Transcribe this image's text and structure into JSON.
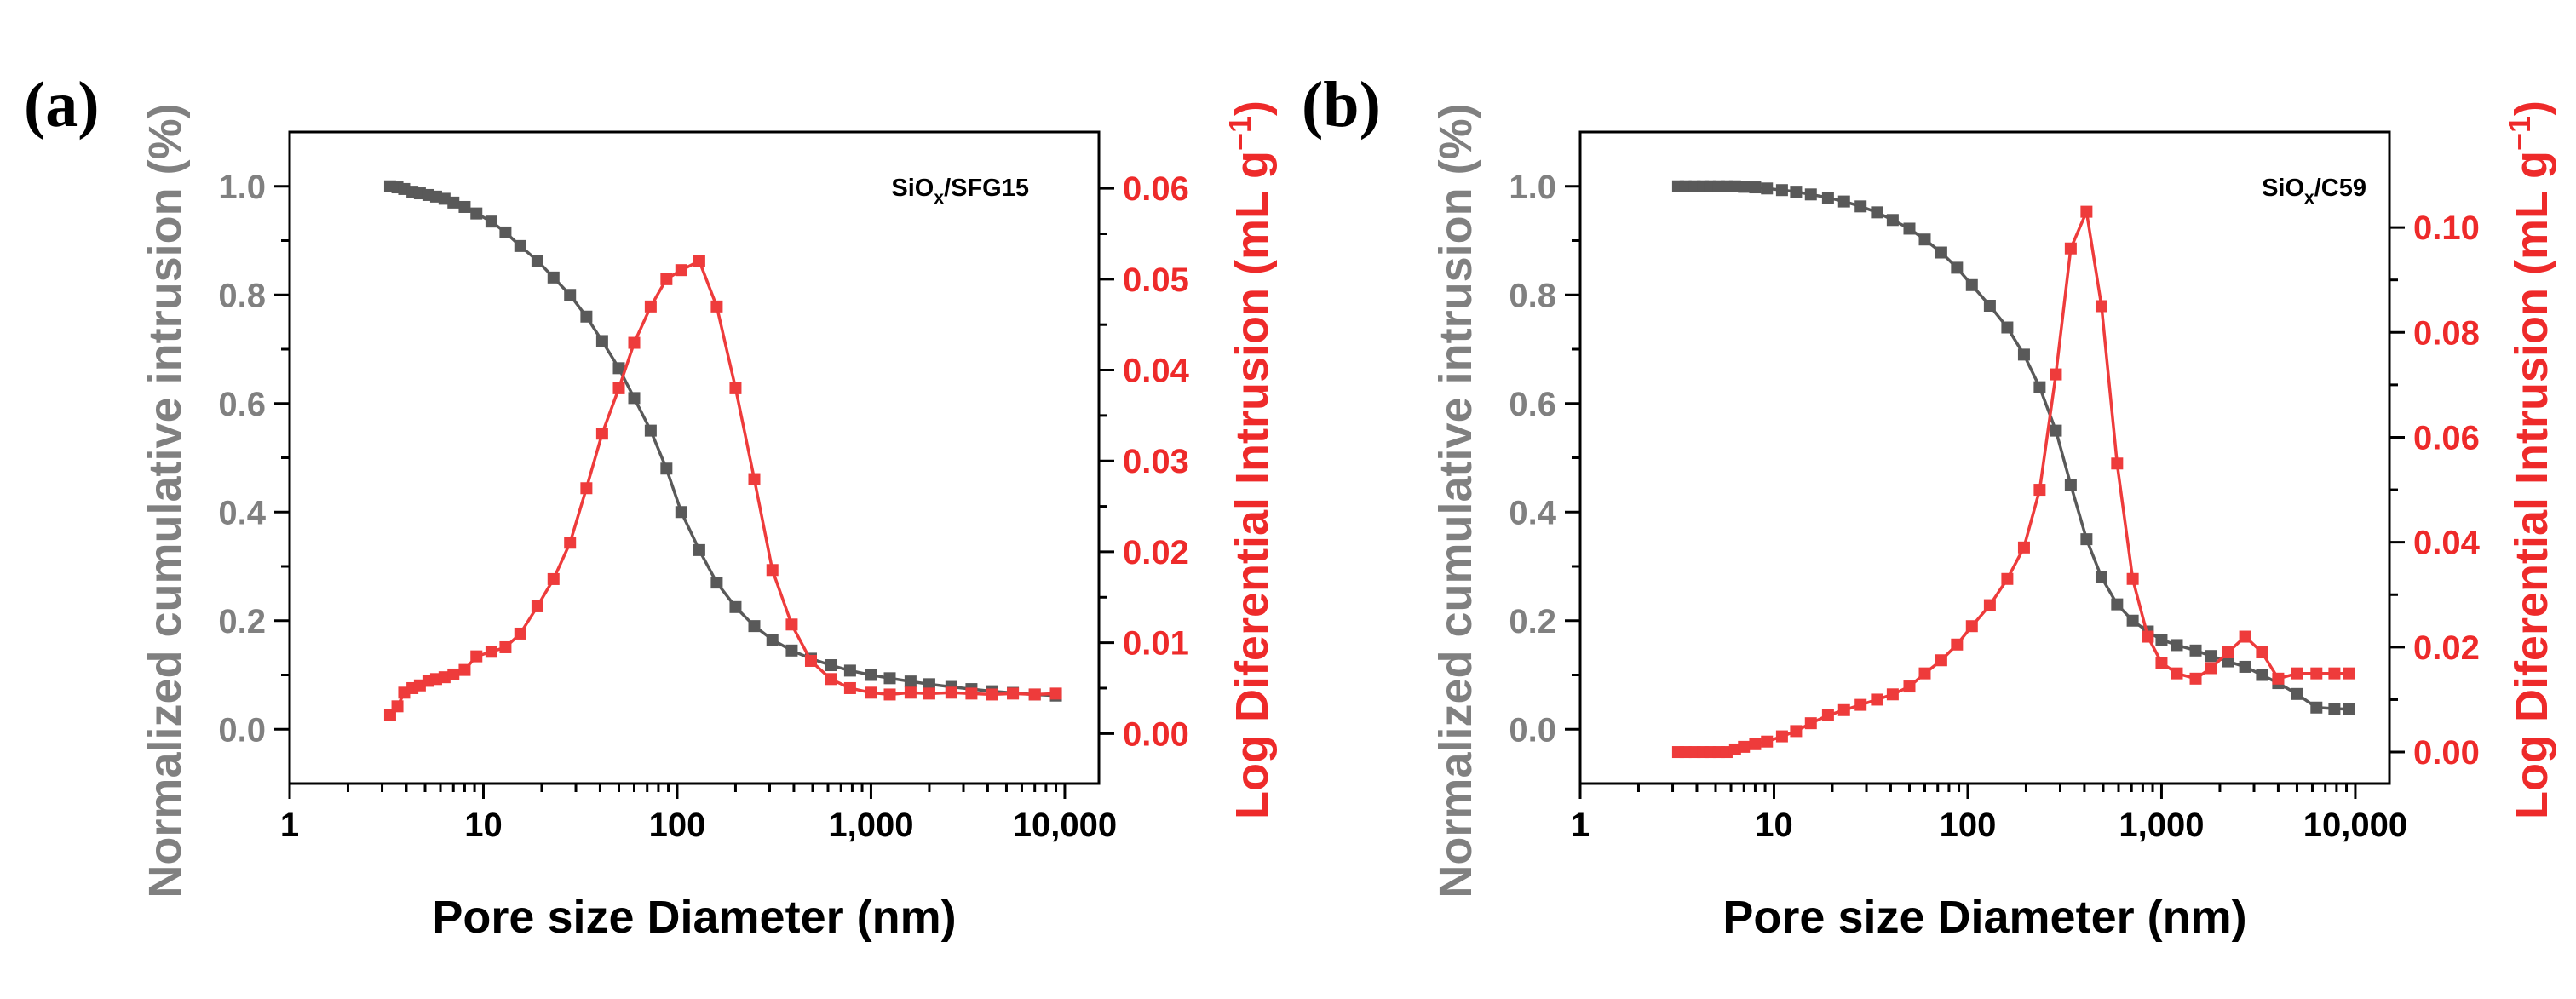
{
  "chart_data": [
    {
      "panel_label": "(a)",
      "type": "scatter",
      "annotation_base": "SiO",
      "annotation_sub": "x",
      "annotation_rest": "/SFG15",
      "xlabel": "Pore size Diameter (nm)",
      "ylabel_left": "Normalized cumulative intrusion (%)",
      "ylabel_right_main": "Log Diferential Intrusion (mL g",
      "ylabel_right_sup": "−1",
      "ylabel_right_close": ")",
      "xscale": "log",
      "xlim": [
        1,
        15000
      ],
      "ylim_left": [
        -0.1,
        1.1
      ],
      "ylim_right": [
        -0.0055,
        0.0662
      ],
      "x_ticks": [
        {
          "value": 1,
          "label": "1"
        },
        {
          "value": 10,
          "label": "10"
        },
        {
          "value": 100,
          "label": "100"
        },
        {
          "value": 1000,
          "label": "1,000"
        },
        {
          "value": 10000,
          "label": "10,000"
        }
      ],
      "y_left_ticks": [
        {
          "value": 0.0,
          "label": "0.0"
        },
        {
          "value": 0.2,
          "label": "0.2"
        },
        {
          "value": 0.4,
          "label": "0.4"
        },
        {
          "value": 0.6,
          "label": "0.6"
        },
        {
          "value": 0.8,
          "label": "0.8"
        },
        {
          "value": 1.0,
          "label": "1.0"
        }
      ],
      "y_right_ticks": [
        {
          "value": 0.0,
          "label": "0.00"
        },
        {
          "value": 0.01,
          "label": "0.01"
        },
        {
          "value": 0.02,
          "label": "0.02"
        },
        {
          "value": 0.03,
          "label": "0.03"
        },
        {
          "value": 0.04,
          "label": "0.04"
        },
        {
          "value": 0.05,
          "label": "0.05"
        },
        {
          "value": 0.06,
          "label": "0.06"
        }
      ],
      "colors": {
        "left": "#595959",
        "right": "#ee3b3b",
        "left_label": "#808080",
        "right_label": "#ee2a2a"
      },
      "series": [
        {
          "name": "Normalized cumulative intrusion",
          "axis": "left",
          "x": [
            3.3,
            3.6,
            3.9,
            4.3,
            4.7,
            5.2,
            5.7,
            6.3,
            7.0,
            8.0,
            9.2,
            11,
            13,
            15.5,
            19,
            23,
            28,
            34,
            41,
            50,
            60,
            73,
            88,
            105,
            130,
            160,
            200,
            250,
            310,
            390,
            490,
            620,
            780,
            1000,
            1250,
            1600,
            2000,
            2600,
            3300,
            4200,
            5400,
            7000,
            9000
          ],
          "values": [
            1.0,
            0.998,
            0.995,
            0.99,
            0.987,
            0.984,
            0.981,
            0.977,
            0.97,
            0.962,
            0.95,
            0.935,
            0.915,
            0.89,
            0.863,
            0.832,
            0.8,
            0.76,
            0.715,
            0.665,
            0.61,
            0.55,
            0.48,
            0.4,
            0.33,
            0.27,
            0.225,
            0.19,
            0.165,
            0.145,
            0.13,
            0.118,
            0.108,
            0.1,
            0.094,
            0.088,
            0.083,
            0.078,
            0.074,
            0.07,
            0.067,
            0.064,
            0.062
          ]
        },
        {
          "name": "Log Diferential Intrusion",
          "axis": "right",
          "x": [
            3.3,
            3.6,
            3.9,
            4.3,
            4.7,
            5.2,
            5.7,
            6.3,
            7.0,
            8.0,
            9.2,
            11,
            13,
            15.5,
            19,
            23,
            28,
            34,
            41,
            50,
            60,
            73,
            88,
            105,
            130,
            160,
            200,
            250,
            310,
            390,
            490,
            620,
            780,
            1000,
            1250,
            1600,
            2000,
            2600,
            3300,
            4200,
            5400,
            7000,
            9000
          ],
          "values": [
            0.002,
            0.003,
            0.0045,
            0.005,
            0.0053,
            0.0058,
            0.006,
            0.0062,
            0.0065,
            0.007,
            0.0085,
            0.009,
            0.0095,
            0.011,
            0.014,
            0.017,
            0.021,
            0.027,
            0.033,
            0.038,
            0.043,
            0.047,
            0.05,
            0.051,
            0.052,
            0.047,
            0.038,
            0.028,
            0.018,
            0.012,
            0.008,
            0.006,
            0.005,
            0.0045,
            0.0043,
            0.0045,
            0.0044,
            0.0045,
            0.0044,
            0.0043,
            0.0044,
            0.0043,
            0.0044
          ]
        }
      ]
    },
    {
      "panel_label": "(b)",
      "type": "scatter",
      "annotation_base": "SiO",
      "annotation_sub": "x",
      "annotation_rest": "/C59",
      "xlabel": "Pore size Diameter (nm)",
      "ylabel_left": "Normalized cumulative intrusion (%)",
      "ylabel_right_main": "Log Diferential Intrusion (mL g",
      "ylabel_right_sup": "−1",
      "ylabel_right_close": ")",
      "xscale": "log",
      "xlim": [
        1,
        15000
      ],
      "ylim_left": [
        -0.1,
        1.1
      ],
      "ylim_right": [
        -0.006,
        0.1182
      ],
      "x_ticks": [
        {
          "value": 1,
          "label": "1"
        },
        {
          "value": 10,
          "label": "10"
        },
        {
          "value": 100,
          "label": "100"
        },
        {
          "value": 1000,
          "label": "1,000"
        },
        {
          "value": 10000,
          "label": "10,000"
        }
      ],
      "y_left_ticks": [
        {
          "value": 0.0,
          "label": "0.0"
        },
        {
          "value": 0.2,
          "label": "0.2"
        },
        {
          "value": 0.4,
          "label": "0.4"
        },
        {
          "value": 0.6,
          "label": "0.6"
        },
        {
          "value": 0.8,
          "label": "0.8"
        },
        {
          "value": 1.0,
          "label": "1.0"
        }
      ],
      "y_right_ticks": [
        {
          "value": 0.0,
          "label": "0.00"
        },
        {
          "value": 0.02,
          "label": "0.02"
        },
        {
          "value": 0.04,
          "label": "0.04"
        },
        {
          "value": 0.06,
          "label": "0.06"
        },
        {
          "value": 0.08,
          "label": "0.08"
        },
        {
          "value": 0.1,
          "label": "0.10"
        }
      ],
      "colors": {
        "left": "#595959",
        "right": "#ee3b3b",
        "left_label": "#808080",
        "right_label": "#ee2a2a"
      },
      "series": [
        {
          "name": "Normalized cumulative intrusion",
          "axis": "left",
          "x": [
            3.2,
            3.5,
            3.9,
            4.3,
            4.7,
            5.2,
            5.7,
            6.3,
            7.0,
            8.0,
            9.2,
            11,
            13,
            15.5,
            19,
            23,
            28,
            34,
            41,
            50,
            60,
            73,
            88,
            105,
            130,
            160,
            195,
            235,
            285,
            340,
            410,
            490,
            590,
            710,
            850,
            1000,
            1200,
            1500,
            1800,
            2200,
            2700,
            3300,
            4000,
            5000,
            6300,
            7800,
            9300
          ],
          "values": [
            1.0,
            1.0,
            1.0,
            1.0,
            1.0,
            1.0,
            1.0,
            1.0,
            0.999,
            0.998,
            0.996,
            0.993,
            0.99,
            0.985,
            0.979,
            0.972,
            0.963,
            0.952,
            0.938,
            0.922,
            0.902,
            0.878,
            0.85,
            0.818,
            0.78,
            0.74,
            0.69,
            0.63,
            0.55,
            0.45,
            0.35,
            0.28,
            0.23,
            0.2,
            0.18,
            0.165,
            0.155,
            0.145,
            0.135,
            0.125,
            0.115,
            0.1,
            0.085,
            0.065,
            0.04,
            0.038,
            0.037
          ]
        },
        {
          "name": "Log Diferential Intrusion",
          "axis": "right",
          "x": [
            3.2,
            3.5,
            3.9,
            4.3,
            4.7,
            5.2,
            5.7,
            6.3,
            7.0,
            8.0,
            9.2,
            11,
            13,
            15.5,
            19,
            23,
            28,
            34,
            41,
            50,
            60,
            73,
            88,
            105,
            130,
            160,
            195,
            235,
            285,
            340,
            410,
            490,
            590,
            710,
            850,
            1000,
            1200,
            1500,
            1800,
            2200,
            2700,
            3300,
            4000,
            5000,
            6300,
            7800,
            9300
          ],
          "values": [
            0.0,
            0.0,
            0.0,
            0.0,
            0.0,
            0.0,
            0.0,
            0.0005,
            0.001,
            0.0015,
            0.002,
            0.003,
            0.004,
            0.0055,
            0.007,
            0.008,
            0.009,
            0.01,
            0.011,
            0.0125,
            0.015,
            0.0175,
            0.0205,
            0.024,
            0.028,
            0.033,
            0.039,
            0.05,
            0.072,
            0.096,
            0.103,
            0.085,
            0.055,
            0.033,
            0.022,
            0.017,
            0.015,
            0.014,
            0.016,
            0.019,
            0.022,
            0.019,
            0.014,
            0.015,
            0.015,
            0.015,
            0.015
          ]
        }
      ]
    }
  ]
}
